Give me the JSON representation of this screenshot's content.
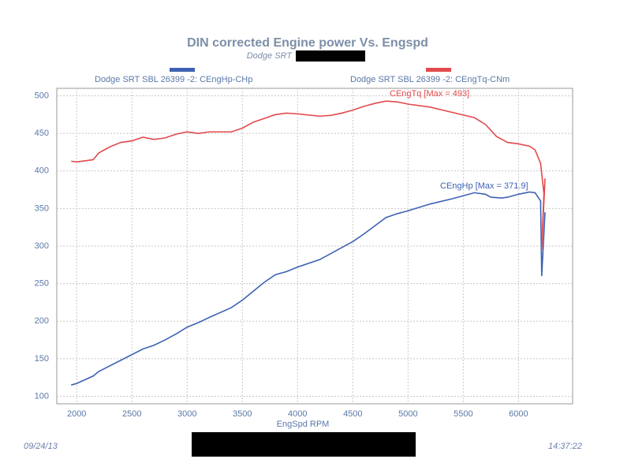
{
  "chart_data": {
    "type": "line",
    "title": "DIN corrected Engine power Vs. Engspd",
    "subtitle": "Dodge SRT",
    "x_label": "EngSpd RPM",
    "footer_date": "09/24/13",
    "footer_time": "14:37:22",
    "xlim": [
      1820,
      6490
    ],
    "ylim": [
      90,
      510
    ],
    "xticks": [
      2000,
      2500,
      3000,
      3500,
      4000,
      4500,
      5000,
      5500,
      6000
    ],
    "yticks": [
      100,
      150,
      200,
      250,
      300,
      350,
      400,
      450,
      500
    ],
    "grid": true,
    "series": [
      {
        "name": "Dodge SRT SBL 26399  -2: CEngHp-CHp",
        "color": "#3d62b3",
        "annotation": "CEngHp [Max = 371.9]",
        "x": [
          1950,
          2000,
          2150,
          2200,
          2400,
          2600,
          2700,
          2800,
          2900,
          3000,
          3100,
          3200,
          3400,
          3500,
          3600,
          3700,
          3800,
          3900,
          4000,
          4200,
          4400,
          4500,
          4600,
          4700,
          4800,
          4900,
          5000,
          5200,
          5400,
          5600,
          5700,
          5750,
          5850,
          5900,
          6000,
          6100,
          6150,
          6200,
          6210,
          6240
        ],
        "values": [
          115,
          117,
          127,
          133,
          148,
          163,
          168,
          175,
          183,
          192,
          198,
          205,
          218,
          228,
          240,
          252,
          262,
          266,
          272,
          282,
          298,
          306,
          316,
          327,
          338,
          343,
          347,
          356,
          363,
          371,
          369,
          365,
          364,
          365,
          369,
          372,
          371,
          360,
          260,
          345
        ]
      },
      {
        "name": "Dodge SRT SBL 26399  -2: CEngTq-CNm",
        "color": "#e24a4c",
        "annotation": "CEngTq [Max = 493]",
        "x": [
          1950,
          2000,
          2100,
          2150,
          2200,
          2300,
          2400,
          2500,
          2600,
          2700,
          2800,
          2900,
          3000,
          3100,
          3200,
          3400,
          3500,
          3600,
          3700,
          3800,
          3900,
          4000,
          4200,
          4300,
          4400,
          4500,
          4600,
          4700,
          4800,
          4900,
          5000,
          5200,
          5400,
          5600,
          5700,
          5800,
          5900,
          6000,
          6100,
          6150,
          6200,
          6230,
          6210,
          6240
        ],
        "values": [
          413,
          412,
          414,
          415,
          424,
          432,
          438,
          440,
          445,
          442,
          444,
          449,
          452,
          450,
          452,
          452,
          457,
          465,
          470,
          475,
          477,
          476,
          473,
          474,
          477,
          481,
          486,
          490,
          493,
          492,
          489,
          485,
          478,
          471,
          462,
          446,
          438,
          436,
          433,
          428,
          410,
          370,
          295,
          390
        ]
      }
    ]
  }
}
